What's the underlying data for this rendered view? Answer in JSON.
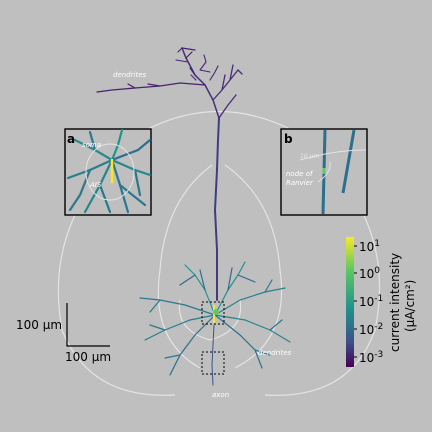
{
  "labels": {
    "dendrites_top": "dendrites",
    "dendrites_bottom": "dendrites",
    "axon": "axon",
    "panel_a": "a",
    "panel_b": "b",
    "soma": "soma",
    "ais": "AIS",
    "node_of_ranvier_line1": "node of",
    "node_of_ranvier_line2": "Ranvier",
    "inset_b_scale": "10 μm"
  },
  "scale_bar": {
    "vertical_label": "100 µm",
    "horizontal_label": "100 µm"
  },
  "colorbar": {
    "title_line1": "current intensity",
    "title_line2": "(μA/cm²)",
    "tick_base": "10",
    "tick_exponents": [
      "1",
      "0",
      "-1",
      "-2",
      "-3"
    ],
    "scale": "log",
    "range": [
      "1e-3.5",
      "1e1.3"
    ],
    "colormap": [
      "#440154",
      "#3b528b",
      "#21918c",
      "#5ec962",
      "#fde725"
    ]
  },
  "colors": {
    "background": "#bfbfbf",
    "outline": "#e0e0e0",
    "apical_low": "#3d2a6e",
    "basal": "#2a7a8c",
    "hot": "#fde725"
  }
}
